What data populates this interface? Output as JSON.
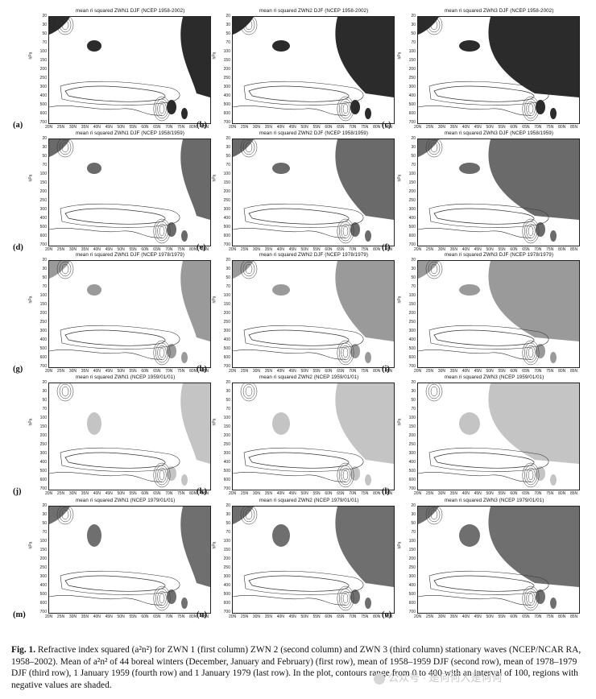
{
  "figure": {
    "rows": [
      {
        "label_suffix": "DJF (NCEP 1958-2002)",
        "panels": [
          {
            "label": "(a)",
            "title": "mean ri squared ZWN1 DJF (NCEP 1958-2002)",
            "shade": "#2b2b2b"
          },
          {
            "label": "(b)",
            "title": "mean ri squared ZWN2 DJF (NCEP 1958-2002)",
            "shade": "#2b2b2b"
          },
          {
            "label": "(c)",
            "title": "mean ri squared ZWN3 DJF (NCEP 1958-2002)",
            "shade": "#2b2b2b"
          }
        ]
      },
      {
        "panels": [
          {
            "label": "(d)",
            "title": "mean ri squared ZWN1 DJF (NCEP 1958/1959)",
            "shade": "#6a6a6a"
          },
          {
            "label": "(e)",
            "title": "mean ri squared ZWN2 DJF (NCEP 1958/1959)",
            "shade": "#6a6a6a"
          },
          {
            "label": "(f)",
            "title": "mean ri squared ZWN3 DJF (NCEP 1958/1959)",
            "shade": "#6a6a6a"
          }
        ]
      },
      {
        "panels": [
          {
            "label": "(g)",
            "title": "mean ri squared ZWN1 DJF (NCEP 1978/1979)",
            "shade": "#9a9a9a"
          },
          {
            "label": "(h)",
            "title": "mean ri squared ZWN2 DJF (NCEP 1978/1979)",
            "shade": "#9a9a9a"
          },
          {
            "label": "(i)",
            "title": "mean ri squared ZWN3 DJF (NCEP 1978/1979)",
            "shade": "#9a9a9a"
          }
        ]
      },
      {
        "panels": [
          {
            "label": "(j)",
            "title": "mean ri squared ZWN1 (NCEP 1959/01/01)",
            "shade": "#c4c4c4"
          },
          {
            "label": "(k)",
            "title": "mean ri squared ZWN2 (NCEP 1959/01/01)",
            "shade": "#c4c4c4"
          },
          {
            "label": "(l)",
            "title": "mean ri squared ZWN3 (NCEP 1959/01/01)",
            "shade": "#c4c4c4"
          }
        ]
      },
      {
        "panels": [
          {
            "label": "(m)",
            "title": "mean ri squared ZWN1 (NCEP 1979/01/01)",
            "shade": "#6f6f6f"
          },
          {
            "label": "(n)",
            "title": "mean ri squared ZWN2 (NCEP 1979/01/01)",
            "shade": "#6f6f6f"
          },
          {
            "label": "(o)",
            "title": "mean ri squared ZWN3 (NCEP 1979/01/01)",
            "shade": "#6f6f6f"
          }
        ]
      }
    ],
    "y_axis_name": "hPa",
    "y_ticks": [
      "20",
      "30",
      "50",
      "70",
      "100",
      "150",
      "200",
      "250",
      "300",
      "400",
      "500",
      "600",
      "700"
    ],
    "x_ticks": [
      "20N",
      "25N",
      "30N",
      "35N",
      "40N",
      "45N",
      "50N",
      "55N",
      "60N",
      "65N",
      "70N",
      "75N",
      "80N",
      "85N"
    ]
  },
  "caption": {
    "figure_label": "Fig. 1.",
    "text": "Refractive index squared (a²n²) for ZWN 1 (first column) ZWN 2 (second column) and ZWN 3 (third column) stationary waves (NCEP/NCAR RA, 1958–2002). Mean of a²n² of 44 boreal winters (December, January and February) (first row), mean of 1958–1959 DJF (second row), mean of 1978–1979 DJF (third row), 1 January 1959 (fourth row) and 1 January 1979 (last row). In the plot, contours range from 0 to 400 with an interval of 100, regions with negative values are shaded."
  },
  "watermark": {
    "text": "公众号 · 是何何人是何何"
  }
}
